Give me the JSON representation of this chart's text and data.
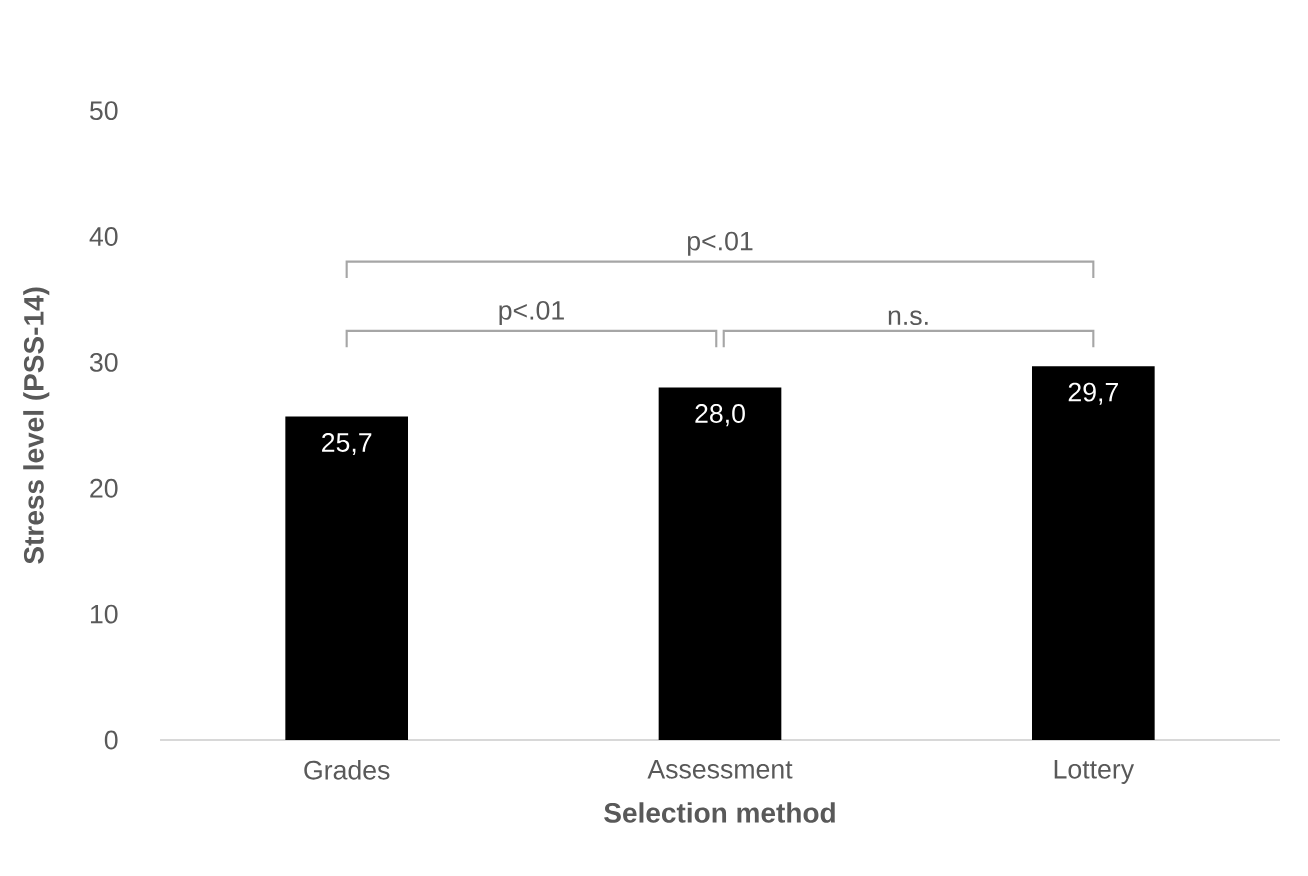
{
  "chart_data": {
    "type": "bar",
    "categories": [
      "Grades",
      "Assessment",
      "Lottery"
    ],
    "values": [
      25.7,
      28.0,
      29.7
    ],
    "value_labels": [
      "25,7",
      "28,0",
      "29,7"
    ],
    "color": "#000000",
    "xlabel": "Selection method",
    "ylabel": "Stress level (PSS-14)",
    "ylim": [
      0,
      50
    ],
    "yticks": [
      0,
      10,
      20,
      30,
      40,
      50
    ],
    "grid": false,
    "annotations": [
      "p<.01",
      "p<.01",
      "n.s."
    ]
  }
}
